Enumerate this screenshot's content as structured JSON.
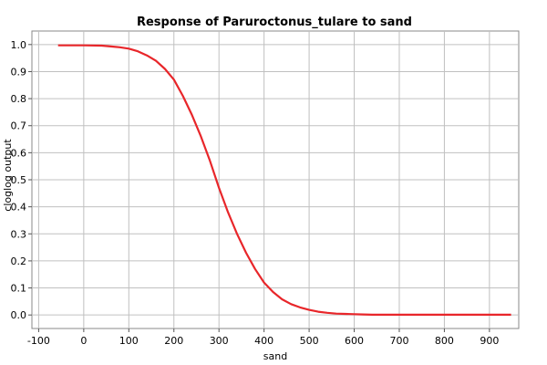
{
  "chart_data": {
    "type": "line",
    "title": "Response of Paruroctonus_tulare to sand",
    "xlabel": "sand",
    "ylabel": "cloglog output",
    "xlim": [
      -115,
      965
    ],
    "ylim": [
      -0.05,
      1.05
    ],
    "x_ticks": [
      -100,
      0,
      100,
      200,
      300,
      400,
      500,
      600,
      700,
      800,
      900
    ],
    "y_ticks": [
      "0.0",
      "0.1",
      "0.2",
      "0.3",
      "0.4",
      "0.5",
      "0.6",
      "0.7",
      "0.8",
      "0.9",
      "1.0"
    ],
    "grid": true,
    "series": [
      {
        "color": "#e8262a",
        "x": [
          -57,
          0,
          40,
          60,
          80,
          100,
          120,
          140,
          160,
          180,
          200,
          220,
          240,
          260,
          280,
          300,
          320,
          340,
          360,
          380,
          400,
          420,
          440,
          460,
          480,
          500,
          520,
          540,
          560,
          580,
          600,
          620,
          640,
          700,
          800,
          948
        ],
        "y": [
          0.997,
          0.997,
          0.996,
          0.993,
          0.99,
          0.985,
          0.975,
          0.96,
          0.94,
          0.91,
          0.87,
          0.81,
          0.74,
          0.66,
          0.57,
          0.47,
          0.38,
          0.3,
          0.23,
          0.17,
          0.12,
          0.085,
          0.058,
          0.04,
          0.028,
          0.019,
          0.012,
          0.008,
          0.005,
          0.004,
          0.003,
          0.002,
          0.001,
          0.001,
          0.001,
          0.001
        ]
      }
    ]
  }
}
